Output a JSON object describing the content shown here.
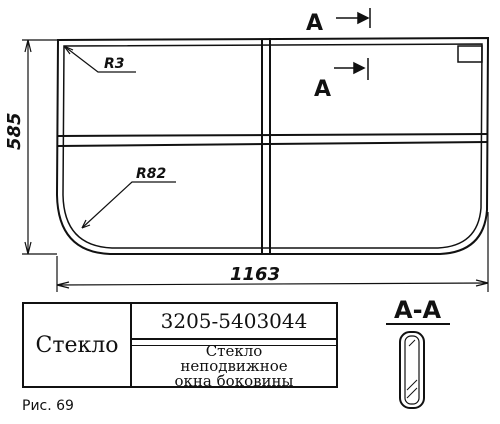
{
  "drawing": {
    "height_dim": "585",
    "width_dim": "1163",
    "radius_small": "R3",
    "radius_large": "R82",
    "section_mark_top": "A",
    "section_mark_mid": "A",
    "section_title": "A-A"
  },
  "title_block": {
    "name": "Стекло",
    "part_number": "3205-5403044",
    "description_line1": "Стекло",
    "description_line2": "неподвижное",
    "description_line3": "окна боковины"
  },
  "caption": "Рис. 69"
}
